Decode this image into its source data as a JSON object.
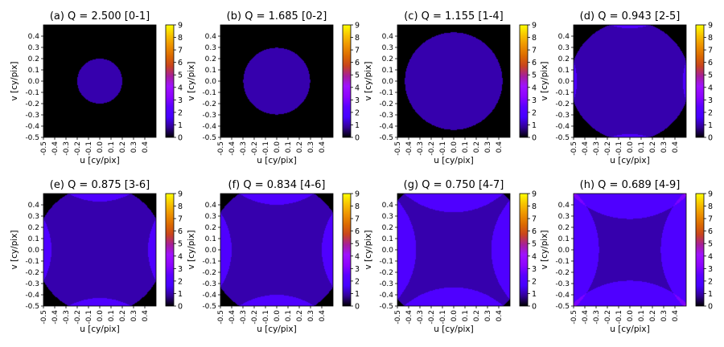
{
  "colormap": {
    "name": "gnuplot",
    "stops": [
      "#000000",
      "#320096",
      "#4600FF",
      "#5A00FF",
      "#8D04FF",
      "#9E12FF",
      "#A61F9A",
      "#C8441E",
      "#DC6B00",
      "#EE9300",
      "#F8C400",
      "#FFFF00"
    ]
  },
  "chart_data": [
    {
      "type": "heatmap",
      "title": "(a) Q = 2.500 [0-1]",
      "xlabel": "u [cy/pix]",
      "ylabel": "v [cy/pix]",
      "xlim": [
        -0.5,
        0.5
      ],
      "ylim": [
        -0.5,
        0.5
      ],
      "ticks": [
        "-0.5",
        "-0.4",
        "-0.3",
        "-0.2",
        "-0.1",
        "0.0",
        "0.1",
        "0.2",
        "0.3",
        "0.4"
      ],
      "colorbar": {
        "range": [
          0,
          9
        ],
        "ticks": [
          "0",
          "1",
          "2",
          "3",
          "4",
          "5",
          "6",
          "7",
          "8",
          "9"
        ]
      },
      "Q": 2.5,
      "count_range": [
        0,
        1
      ]
    },
    {
      "type": "heatmap",
      "title": "(b) Q = 1.685 [0-2]",
      "xlabel": "u [cy/pix]",
      "ylabel": "v [cy/pix]",
      "xlim": [
        -0.5,
        0.5
      ],
      "ylim": [
        -0.5,
        0.5
      ],
      "ticks": [
        "-0.5",
        "-0.4",
        "-0.3",
        "-0.2",
        "-0.1",
        "0.0",
        "0.1",
        "0.2",
        "0.3",
        "0.4"
      ],
      "colorbar": {
        "range": [
          0,
          9
        ],
        "ticks": [
          "0",
          "1",
          "2",
          "3",
          "4",
          "5",
          "6",
          "7",
          "8",
          "9"
        ]
      },
      "Q": 1.685,
      "count_range": [
        0,
        2
      ]
    },
    {
      "type": "heatmap",
      "title": "(c) Q = 1.155 [1-4]",
      "xlabel": "u [cy/pix]",
      "ylabel": "v [cy/pix]",
      "xlim": [
        -0.5,
        0.5
      ],
      "ylim": [
        -0.5,
        0.5
      ],
      "ticks": [
        "-0.5",
        "-0.4",
        "-0.3",
        "-0.2",
        "-0.1",
        "0.0",
        "0.1",
        "0.2",
        "0.3",
        "0.4"
      ],
      "colorbar": {
        "range": [
          0,
          9
        ],
        "ticks": [
          "0",
          "1",
          "2",
          "3",
          "4",
          "5",
          "6",
          "7",
          "8",
          "9"
        ]
      },
      "Q": 1.155,
      "count_range": [
        1,
        4
      ]
    },
    {
      "type": "heatmap",
      "title": "(d) Q = 0.943 [2-5]",
      "xlabel": "u [cy/pix]",
      "ylabel": "v [cy/pix]",
      "xlim": [
        -0.5,
        0.5
      ],
      "ylim": [
        -0.5,
        0.5
      ],
      "ticks": [
        "-0.5",
        "-0.4",
        "-0.3",
        "-0.2",
        "-0.1",
        "0.0",
        "0.1",
        "0.2",
        "0.3",
        "0.4"
      ],
      "colorbar": {
        "range": [
          0,
          9
        ],
        "ticks": [
          "0",
          "1",
          "2",
          "3",
          "4",
          "5",
          "6",
          "7",
          "8",
          "9"
        ]
      },
      "Q": 0.943,
      "count_range": [
        2,
        5
      ]
    },
    {
      "type": "heatmap",
      "title": "(e) Q = 0.875 [3-6]",
      "xlabel": "u [cy/pix]",
      "ylabel": "v [cy/pix]",
      "xlim": [
        -0.5,
        0.5
      ],
      "ylim": [
        -0.5,
        0.5
      ],
      "ticks": [
        "-0.5",
        "-0.4",
        "-0.3",
        "-0.2",
        "-0.1",
        "0.0",
        "0.1",
        "0.2",
        "0.3",
        "0.4"
      ],
      "colorbar": {
        "range": [
          0,
          9
        ],
        "ticks": [
          "0",
          "1",
          "2",
          "3",
          "4",
          "5",
          "6",
          "7",
          "8",
          "9"
        ]
      },
      "Q": 0.875,
      "count_range": [
        3,
        6
      ]
    },
    {
      "type": "heatmap",
      "title": "(f) Q = 0.834 [4-6]",
      "xlabel": "u [cy/pix]",
      "ylabel": "v [cy/pix]",
      "xlim": [
        -0.5,
        0.5
      ],
      "ylim": [
        -0.5,
        0.5
      ],
      "ticks": [
        "-0.5",
        "-0.4",
        "-0.3",
        "-0.2",
        "-0.1",
        "0.0",
        "0.1",
        "0.2",
        "0.3",
        "0.4"
      ],
      "colorbar": {
        "range": [
          0,
          9
        ],
        "ticks": [
          "0",
          "1",
          "2",
          "3",
          "4",
          "5",
          "6",
          "7",
          "8",
          "9"
        ]
      },
      "Q": 0.834,
      "count_range": [
        4,
        6
      ]
    },
    {
      "type": "heatmap",
      "title": "(g) Q = 0.750 [4-7]",
      "xlabel": "u [cy/pix]",
      "ylabel": "v [cy/pix]",
      "xlim": [
        -0.5,
        0.5
      ],
      "ylim": [
        -0.5,
        0.5
      ],
      "ticks": [
        "-0.5",
        "-0.4",
        "-0.3",
        "-0.2",
        "-0.1",
        "0.0",
        "0.1",
        "0.2",
        "0.3",
        "0.4"
      ],
      "colorbar": {
        "range": [
          0,
          9
        ],
        "ticks": [
          "0",
          "1",
          "2",
          "3",
          "4",
          "5",
          "6",
          "7",
          "8",
          "9"
        ]
      },
      "Q": 0.75,
      "count_range": [
        4,
        7
      ]
    },
    {
      "type": "heatmap",
      "title": "(h) Q = 0.689 [4-9]",
      "xlabel": "u [cy/pix]",
      "ylabel": "v [cy/pix]",
      "xlim": [
        -0.5,
        0.5
      ],
      "ylim": [
        -0.5,
        0.5
      ],
      "ticks": [
        "-0.5",
        "-0.4",
        "-0.3",
        "-0.2",
        "-0.1",
        "0.0",
        "0.1",
        "0.2",
        "0.3",
        "0.4"
      ],
      "colorbar": {
        "range": [
          0,
          9
        ],
        "ticks": [
          "0",
          "1",
          "2",
          "3",
          "4",
          "5",
          "6",
          "7",
          "8",
          "9"
        ]
      },
      "Q": 0.689,
      "count_range": [
        4,
        9
      ]
    }
  ]
}
